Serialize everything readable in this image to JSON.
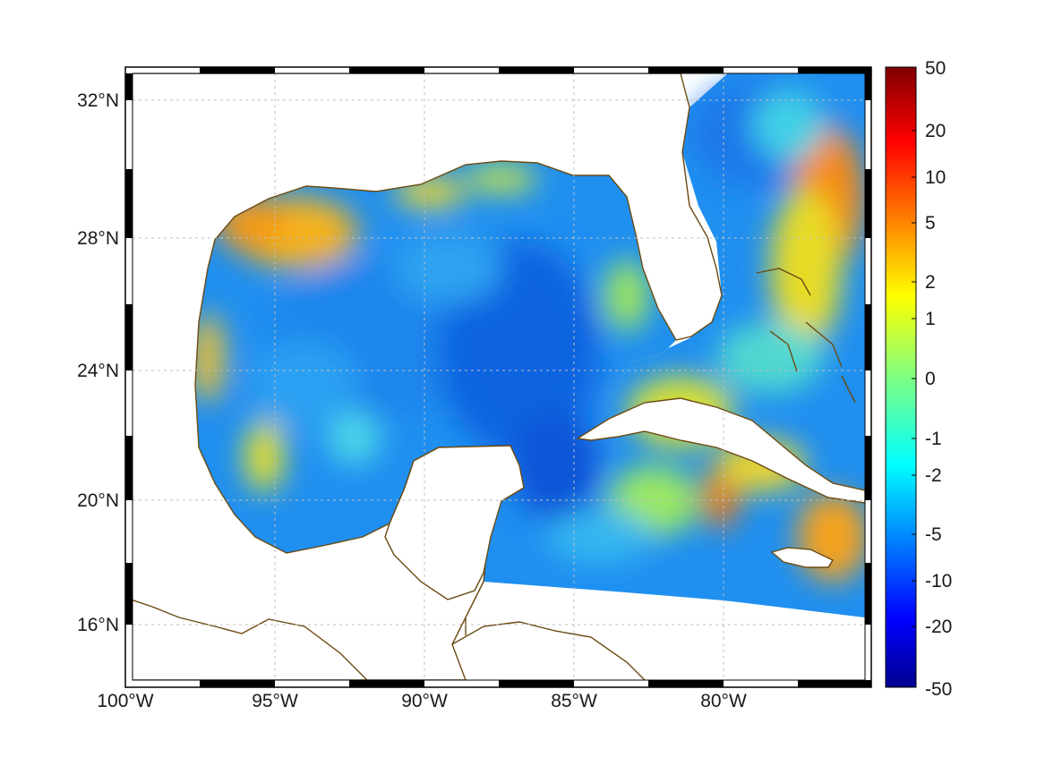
{
  "map": {
    "lon_ticks": [
      "100°W",
      "95°W",
      "90°W",
      "85°W",
      "80°W"
    ],
    "lat_ticks": [
      "32°N",
      "28°N",
      "24°N",
      "20°N",
      "16°N"
    ],
    "colorbar_ticks": [
      "50",
      "20",
      "10",
      "5",
      "2",
      "1",
      "0",
      "-1",
      "-2",
      "-5",
      "-10",
      "-20",
      "-50"
    ],
    "colorbar_range": [
      -50,
      50
    ],
    "colormap": "jet",
    "grid": true,
    "frame": "black-white checkered border",
    "colors": {
      "coastline": "#6b4a12",
      "grid": "#bfbfbf",
      "land": "#ffffff"
    }
  }
}
